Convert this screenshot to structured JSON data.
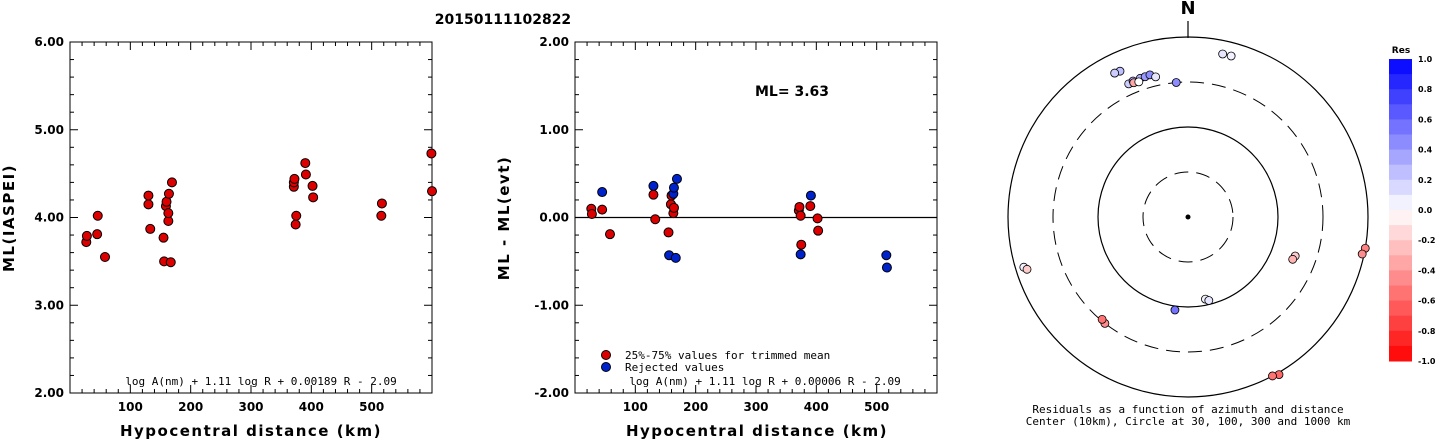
{
  "title": "20150111102822",
  "chart_data": [
    {
      "type": "scatter",
      "xlabel": "Hypocentral distance (km)",
      "ylabel": "ML(IASPEI)",
      "xlim": [
        0,
        600
      ],
      "ylim": [
        2.0,
        6.0
      ],
      "xticks": [
        "100",
        "200",
        "300",
        "400",
        "500"
      ],
      "yticks": [
        "2.00",
        "3.00",
        "4.00",
        "5.00",
        "6.00"
      ],
      "formula": "log A(nm) + 1.11 log R + 0.00189 R - 2.09",
      "series": [
        {
          "color": "#dd0000",
          "points": [
            [
              27,
              3.72
            ],
            [
              28,
              3.79
            ],
            [
              45,
              3.81
            ],
            [
              46,
              4.02
            ],
            [
              58,
              3.55
            ],
            [
              130,
              4.15
            ],
            [
              130,
              4.25
            ],
            [
              133,
              3.87
            ],
            [
              155,
              3.77
            ],
            [
              156,
              3.5
            ],
            [
              159,
              4.13
            ],
            [
              160,
              4.18
            ],
            [
              163,
              3.96
            ],
            [
              163,
              4.05
            ],
            [
              164,
              4.27
            ],
            [
              167,
              3.49
            ],
            [
              169,
              4.4
            ],
            [
              371,
              4.35
            ],
            [
              371,
              4.4
            ],
            [
              372,
              4.44
            ],
            [
              374,
              3.92
            ],
            [
              375,
              4.02
            ],
            [
              390,
              4.62
            ],
            [
              391,
              4.49
            ],
            [
              402,
              4.36
            ],
            [
              403,
              4.23
            ],
            [
              516,
              4.02
            ],
            [
              517,
              4.16
            ],
            [
              599,
              4.73
            ],
            [
              600,
              4.3
            ]
          ]
        }
      ]
    },
    {
      "type": "scatter",
      "xlabel": "Hypocentral distance (km)",
      "ylabel": "ML - ML(evt)",
      "xlim": [
        0,
        600
      ],
      "ylim": [
        -2.0,
        2.0
      ],
      "xticks": [
        "100",
        "200",
        "300",
        "400",
        "500"
      ],
      "yticks": [
        "-2.00",
        "-1.00",
        "0.00",
        "1.00",
        "2.00"
      ],
      "annotation": "ML=  3.63",
      "formula": "log A(nm) + 1.11 log R + 0.00006 R - 2.09",
      "legend": [
        {
          "label": "25%-75% values for trimmed mean",
          "color": "#dd0000"
        },
        {
          "label": "Rejected values",
          "color": "#0022cc"
        }
      ],
      "series": [
        {
          "name": "25%-75% values for trimmed mean",
          "color": "#dd0000",
          "points": [
            [
              27,
              0.1
            ],
            [
              28,
              0.04
            ],
            [
              45,
              0.09
            ],
            [
              58,
              -0.19
            ],
            [
              130,
              0.26
            ],
            [
              133,
              -0.02
            ],
            [
              155,
              -0.17
            ],
            [
              159,
              0.15
            ],
            [
              160,
              0.25
            ],
            [
              163,
              0.05
            ],
            [
              164,
              0.11
            ],
            [
              371,
              0.08
            ],
            [
              372,
              0.12
            ],
            [
              374,
              0.02
            ],
            [
              375,
              -0.31
            ],
            [
              390,
              0.13
            ],
            [
              402,
              -0.01
            ],
            [
              403,
              -0.15
            ]
          ]
        },
        {
          "name": "Rejected values",
          "color": "#0022cc",
          "points": [
            [
              45,
              0.29
            ],
            [
              130,
              0.36
            ],
            [
              156,
              -0.43
            ],
            [
              163,
              0.27
            ],
            [
              164,
              0.34
            ],
            [
              167,
              -0.46
            ],
            [
              169,
              0.44
            ],
            [
              374,
              -0.42
            ],
            [
              391,
              0.25
            ],
            [
              516,
              -0.43
            ],
            [
              517,
              -0.57
            ]
          ]
        }
      ]
    },
    {
      "type": "polar-scatter",
      "north_label": "N",
      "caption_line1": "Residuals as a function of azimuth and distance",
      "caption_line2": "Center (10km), Circle at 30, 100, 300 and 1000 km",
      "colorbar_title": "Res",
      "colorbar_ticks": [
        "1.0",
        "0.8",
        "0.6",
        "0.4",
        "0.2",
        "0.0",
        "-0.2",
        "-0.4",
        "-0.6",
        "-0.8",
        "-1.0"
      ],
      "colorbar_range": [
        -1.0,
        1.0
      ],
      "points": [
        {
          "az": 335,
          "dist": 600,
          "res": 0.25
        },
        {
          "az": 333,
          "dist": 610,
          "res": 0.2
        },
        {
          "az": 15,
          "dist": 700,
          "res": 0.05
        },
        {
          "az": 12,
          "dist": 700,
          "res": 0.1
        },
        {
          "az": 336,
          "dist": 400,
          "res": 0.2
        },
        {
          "az": 338,
          "dist": 410,
          "res": 0.35
        },
        {
          "az": 341,
          "dist": 410,
          "res": 0.3
        },
        {
          "az": 343,
          "dist": 410,
          "res": 0.4
        },
        {
          "az": 345,
          "dist": 415,
          "res": 0.45
        },
        {
          "az": 338,
          "dist": 390,
          "res": -0.35
        },
        {
          "az": 340,
          "dist": 380,
          "res": 0.0
        },
        {
          "az": 347,
          "dist": 380,
          "res": 0.1
        },
        {
          "az": 355,
          "dist": 300,
          "res": 0.45
        },
        {
          "az": 110,
          "dist": 180,
          "res": -0.2
        },
        {
          "az": 112,
          "dist": 175,
          "res": -0.3
        },
        {
          "az": 100,
          "dist": 1000,
          "res": -0.5
        },
        {
          "az": 102,
          "dist": 950,
          "res": -0.45
        },
        {
          "az": 150,
          "dist": 1050,
          "res": -0.6
        },
        {
          "az": 152,
          "dist": 1000,
          "res": -0.55
        },
        {
          "az": 168,
          "dist": 85,
          "res": 0.05
        },
        {
          "az": 166,
          "dist": 90,
          "res": 0.1
        },
        {
          "az": 188,
          "dist": 110,
          "res": 0.55
        },
        {
          "az": 218,
          "dist": 300,
          "res": -0.45
        },
        {
          "az": 220,
          "dist": 290,
          "res": -0.55
        },
        {
          "az": 253,
          "dist": 800,
          "res": 0.05
        },
        {
          "az": 252,
          "dist": 750,
          "res": -0.2
        }
      ]
    }
  ]
}
